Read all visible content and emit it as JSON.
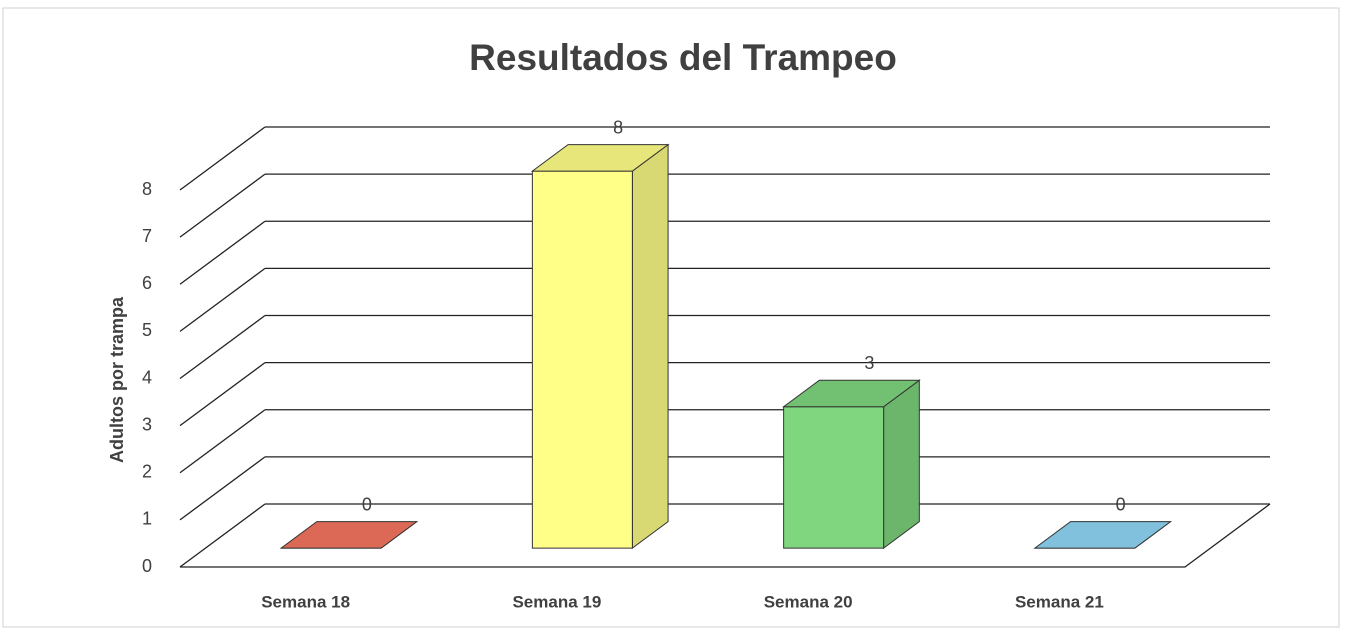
{
  "chart_data": {
    "type": "bar3d",
    "title": "Resultados del Trampeo",
    "ylabel": "Adultos por trampa",
    "categories": [
      "Semana 18",
      "Semana 19",
      "Semana 20",
      "Semana 21"
    ],
    "values": [
      0,
      8,
      3,
      0
    ],
    "colors": [
      "#f4735f",
      "#ffff88",
      "#7fd67f",
      "#8fd6f5"
    ],
    "ylim": [
      0,
      8
    ],
    "yticks": [
      0,
      1,
      2,
      3,
      4,
      5,
      6,
      7,
      8
    ],
    "grid": true
  }
}
